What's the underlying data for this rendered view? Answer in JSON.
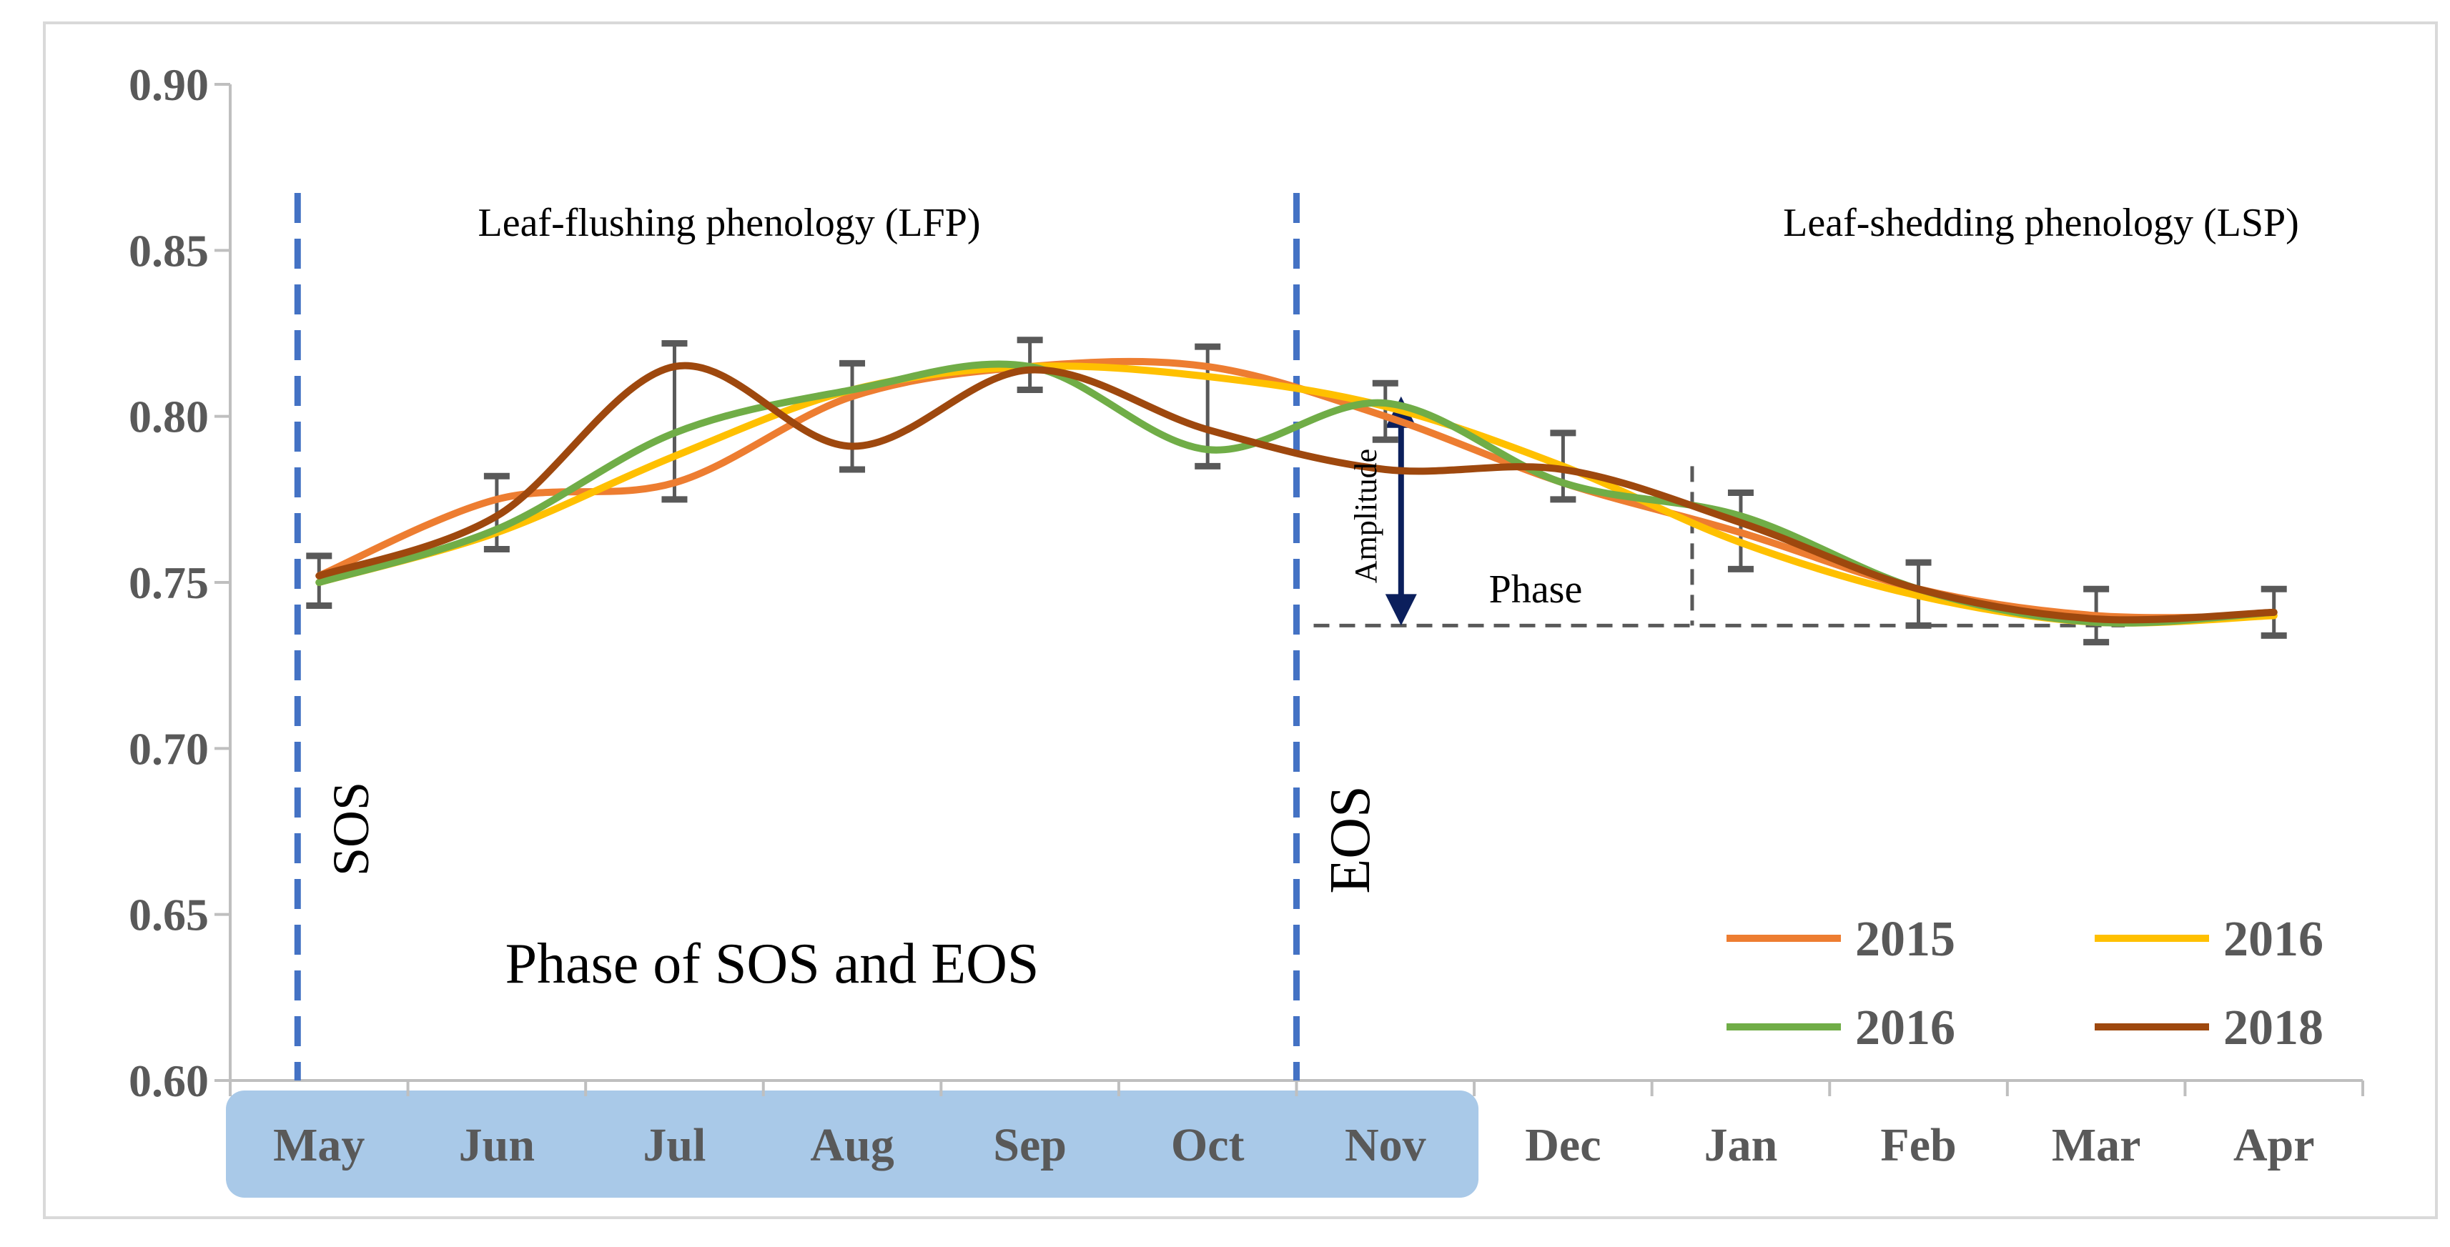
{
  "chart_data": {
    "type": "line",
    "title": "",
    "xlabel": "",
    "ylabel": "",
    "categories": [
      "May",
      "Jun",
      "Jul",
      "Aug",
      "Sep",
      "Oct",
      "Nov",
      "Dec",
      "Jan",
      "Feb",
      "Mar",
      "Apr"
    ],
    "ylim": [
      0.6,
      0.9
    ],
    "yticks": [
      "0.60",
      "0.65",
      "0.70",
      "0.75",
      "0.80",
      "0.85",
      "0.90"
    ],
    "grid": false,
    "legend_position": "bottom-right",
    "series": [
      {
        "name": "2015",
        "color": "#ED7D31",
        "values": [
          0.752,
          0.775,
          0.78,
          0.806,
          0.815,
          0.815,
          0.8,
          0.78,
          0.765,
          0.748,
          0.74,
          0.74
        ]
      },
      {
        "name": "2016",
        "color": "#FFC000",
        "values": [
          0.75,
          0.765,
          0.788,
          0.808,
          0.815,
          0.812,
          0.803,
          0.785,
          0.762,
          0.746,
          0.738,
          0.74
        ]
      },
      {
        "name": "2016",
        "color": "#70AD47",
        "values": [
          0.75,
          0.766,
          0.795,
          0.808,
          0.815,
          0.79,
          0.804,
          0.78,
          0.77,
          0.748,
          0.738,
          0.741
        ]
      },
      {
        "name": "2018",
        "color": "#9E480E",
        "values": [
          0.752,
          0.77,
          0.815,
          0.791,
          0.814,
          0.796,
          0.784,
          0.784,
          0.768,
          0.748,
          0.739,
          0.741
        ]
      }
    ],
    "error_bars": [
      {
        "month": "May",
        "low": 0.743,
        "high": 0.758
      },
      {
        "month": "Jun",
        "low": 0.76,
        "high": 0.782
      },
      {
        "month": "Jul",
        "low": 0.775,
        "high": 0.822
      },
      {
        "month": "Aug",
        "low": 0.784,
        "high": 0.816
      },
      {
        "month": "Sep",
        "low": 0.808,
        "high": 0.823
      },
      {
        "month": "Oct",
        "low": 0.785,
        "high": 0.821
      },
      {
        "month": "Nov",
        "low": 0.793,
        "high": 0.81
      },
      {
        "month": "Dec",
        "low": 0.775,
        "high": 0.795
      },
      {
        "month": "Jan",
        "low": 0.754,
        "high": 0.777
      },
      {
        "month": "Feb",
        "low": 0.737,
        "high": 0.756
      },
      {
        "month": "Mar",
        "low": 0.732,
        "high": 0.748
      },
      {
        "month": "Apr",
        "low": 0.734,
        "high": 0.748
      }
    ],
    "phase_markers": {
      "sos_month": "May",
      "eos_month": "Nov",
      "sos_label": "SOS",
      "eos_label": "EOS",
      "phase_line_value": 0.737,
      "amplitude_top_value": 0.806,
      "phase_end_month": "Jan",
      "phase_top_value": 0.785
    },
    "annotations": {
      "lfp": "Leaf-flushing phenology (LFP)",
      "lsp": "Leaf-shedding phenology (LSP)",
      "phase_sos_eos": "Phase of SOS and EOS",
      "amplitude": "Amplitude",
      "phase": "Phase"
    },
    "highlight_months": [
      "May",
      "Jun",
      "Jul",
      "Aug",
      "Sep",
      "Oct",
      "Nov"
    ],
    "colors": {
      "axis": "#BFBFBF",
      "tick_text": "#595959",
      "dashed_marker": "#4472C4",
      "highlight": "#A9C9E8",
      "error_bar": "#595959",
      "amplitude_arrow": "#0B1F5C",
      "phase_line": "#595959"
    }
  }
}
